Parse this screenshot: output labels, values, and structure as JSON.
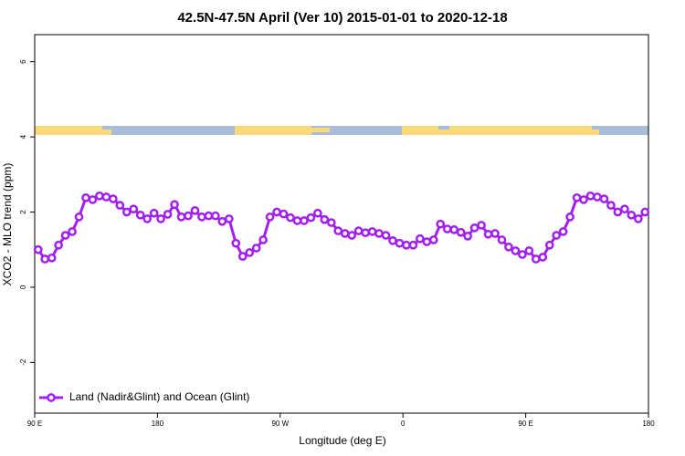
{
  "chart_data": {
    "type": "line",
    "title": "42.5N-47.5N April (Ver 10)   2015-01-01 to 2020-12-18",
    "x_label": "Longitude (deg E)",
    "y_label": "XCO2 - MLO trend (ppm)",
    "xlim": [
      90,
      540
    ],
    "xticks": [
      {
        "value": 90,
        "label": "90 E"
      },
      180,
      {
        "value": 270,
        "label": "90 W"
      },
      {
        "value": 360,
        "label": "0"
      },
      {
        "value": 450,
        "label": "90 E"
      },
      {
        "value": 540,
        "label": "180"
      }
    ],
    "ylim": [
      -3.35,
      6.72
    ],
    "yticks": [
      -2,
      0,
      2,
      4,
      6
    ],
    "legend": "lower left",
    "x": [
      92.5,
      97.5,
      102.5,
      107.5,
      112.5,
      117.5,
      122.5,
      127.5,
      132.5,
      137.5,
      142.5,
      147.5,
      152.5,
      157.5,
      162.5,
      167.5,
      172.5,
      177.5,
      182.5,
      187.5,
      192.5,
      197.5,
      202.5,
      207.5,
      212.5,
      217.5,
      222.5,
      227.5,
      232.5,
      237.5,
      242.5,
      247.5,
      252.5,
      257.5,
      262.5,
      267.5,
      272.5,
      277.5,
      282.5,
      287.5,
      292.5,
      297.5,
      302.5,
      307.5,
      312.5,
      317.5,
      322.5,
      327.5,
      332.5,
      337.5,
      342.5,
      347.5,
      352.5,
      357.5,
      362.5,
      367.5,
      372.5,
      377.5,
      382.5,
      387.5,
      392.5,
      397.5,
      402.5,
      407.5,
      412.5,
      417.5,
      422.5,
      427.5,
      432.5,
      437.5,
      442.5,
      447.5,
      452.5,
      457.5,
      462.5,
      467.5,
      472.5,
      477.5,
      482.5,
      487.5,
      492.5,
      497.5,
      502.5,
      507.5,
      512.5,
      517.5,
      522.5,
      527.5,
      532.5,
      537.5
    ],
    "series": [
      {
        "name": "Land (Nadir&Glint) and Ocean (Glint)",
        "color": "#a020f0",
        "values": [
          1.0,
          0.75,
          0.78,
          1.12,
          1.38,
          1.48,
          1.87,
          2.38,
          2.33,
          2.43,
          2.4,
          2.35,
          2.18,
          2.0,
          2.08,
          1.92,
          1.82,
          1.97,
          1.82,
          1.94,
          2.2,
          1.87,
          1.9,
          2.04,
          1.87,
          1.9,
          1.9,
          1.75,
          1.82,
          1.17,
          0.82,
          0.92,
          1.04,
          1.26,
          1.87,
          2.0,
          1.95,
          1.85,
          1.77,
          1.77,
          1.85,
          1.97,
          1.8,
          1.72,
          1.5,
          1.43,
          1.38,
          1.5,
          1.45,
          1.48,
          1.43,
          1.38,
          1.24,
          1.17,
          1.12,
          1.12,
          1.29,
          1.21,
          1.26,
          1.68,
          1.55,
          1.53,
          1.46,
          1.36,
          1.58,
          1.65,
          1.41,
          1.43,
          1.26,
          1.07,
          0.97,
          0.87,
          0.97,
          0.75,
          0.8,
          1.12,
          1.38,
          1.48,
          1.87,
          2.38,
          2.33,
          2.43,
          2.4,
          2.35,
          2.18,
          2.0,
          2.08,
          1.92,
          1.82,
          2.0
        ]
      }
    ]
  }
}
